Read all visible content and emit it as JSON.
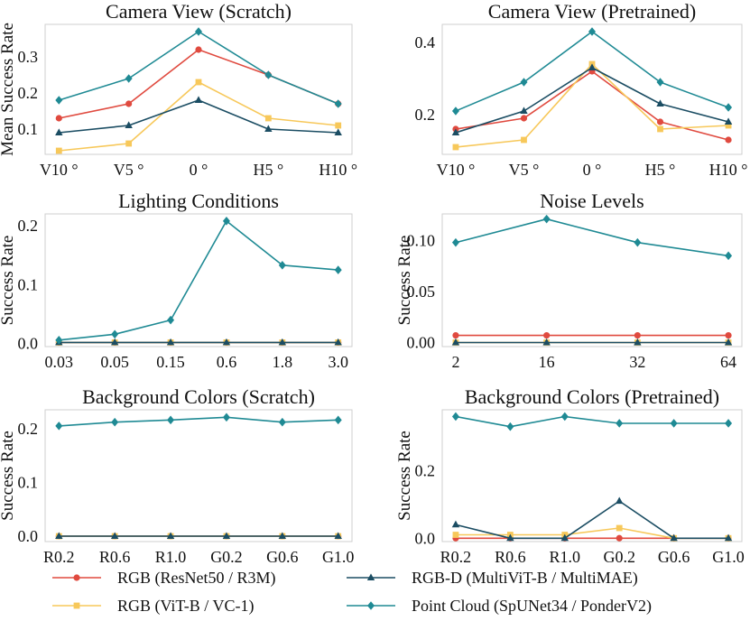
{
  "series_styles": [
    {
      "name": "RGB (ResNet50 / R3M)",
      "color": "#e04a3f",
      "marker": "circle"
    },
    {
      "name": "RGB (ViT-B / VC-1)",
      "color": "#f7c85a",
      "marker": "square"
    },
    {
      "name": "RGB-D (MultiViT-B / MultiMAE)",
      "color": "#1b4d63",
      "marker": "triangle"
    },
    {
      "name": "Point Cloud (SpUNet34 / PonderV2)",
      "color": "#1f8a94",
      "marker": "diamond"
    }
  ],
  "chart_data": [
    {
      "type": "line",
      "title": "Camera View (Scratch)",
      "ylabel": "Mean Success Rate",
      "categories": [
        "V10$^\\circ$",
        "V5$^\\circ$",
        "0$^\\circ$",
        "H5$^\\circ$",
        "H10$^\\circ$"
      ],
      "category_labels": [
        "V10 °",
        "V5 °",
        "0 °",
        "H5 °",
        "H10 °"
      ],
      "ylim": [
        0.03,
        0.39
      ],
      "yticks": [
        0.1,
        0.2,
        0.3
      ],
      "ytick_labels": [
        "0.1",
        "0.2",
        "0.3"
      ],
      "series": [
        {
          "name": "RGB (ResNet50 / R3M)",
          "values": [
            0.13,
            0.17,
            0.32,
            0.25,
            0.17
          ]
        },
        {
          "name": "RGB (ViT-B / VC-1)",
          "values": [
            0.04,
            0.06,
            0.23,
            0.13,
            0.11
          ]
        },
        {
          "name": "RGB-D (MultiViT-B / MultiMAE)",
          "values": [
            0.09,
            0.11,
            0.18,
            0.1,
            0.09
          ]
        },
        {
          "name": "Point Cloud (SpUNet34 / PonderV2)",
          "values": [
            0.18,
            0.24,
            0.37,
            0.25,
            0.17
          ]
        }
      ]
    },
    {
      "type": "line",
      "title": "Camera View (Pretrained)",
      "ylabel": "",
      "categories": [
        "V10$^\\circ$",
        "V5$^\\circ$",
        "0$^\\circ$",
        "H5$^\\circ$",
        "H10$^\\circ$"
      ],
      "category_labels": [
        "V10 °",
        "V5 °",
        "0 °",
        "H5 °",
        "H10 °"
      ],
      "ylim": [
        0.09,
        0.45
      ],
      "yticks": [
        0.2,
        0.4
      ],
      "ytick_labels": [
        "0.2",
        "0.4"
      ],
      "series": [
        {
          "name": "RGB (ResNet50 / R3M)",
          "values": [
            0.16,
            0.19,
            0.32,
            0.18,
            0.13
          ]
        },
        {
          "name": "RGB (ViT-B / VC-1)",
          "values": [
            0.11,
            0.13,
            0.34,
            0.16,
            0.17
          ]
        },
        {
          "name": "RGB-D (MultiViT-B / MultiMAE)",
          "values": [
            0.15,
            0.21,
            0.33,
            0.23,
            0.18
          ]
        },
        {
          "name": "Point Cloud (SpUNet34 / PonderV2)",
          "values": [
            0.21,
            0.29,
            0.43,
            0.29,
            0.22
          ]
        }
      ]
    },
    {
      "type": "line",
      "title": "Lighting Conditions",
      "ylabel": "Success Rate",
      "categories": [
        "0.03",
        "0.05",
        "0.15",
        "0.6",
        "1.8",
        "3.0"
      ],
      "category_labels": [
        "0.03",
        "0.05",
        "0.15",
        "0.6",
        "1.8",
        "3.0"
      ],
      "ylim": [
        -0.005,
        0.22
      ],
      "yticks": [
        0.0,
        0.1,
        0.2
      ],
      "ytick_labels": [
        "0.0",
        "0.1",
        "0.2"
      ],
      "series": [
        {
          "name": "RGB (ResNet50 / R3M)",
          "values": [
            0.002,
            0.002,
            0.002,
            0.002,
            0.002,
            0.002
          ]
        },
        {
          "name": "RGB (ViT-B / VC-1)",
          "values": [
            0.002,
            0.002,
            0.002,
            0.002,
            0.002,
            0.002
          ]
        },
        {
          "name": "RGB-D (MultiViT-B / MultiMAE)",
          "values": [
            0.002,
            0.002,
            0.002,
            0.002,
            0.002,
            0.002
          ]
        },
        {
          "name": "Point Cloud (SpUNet34 / PonderV2)",
          "values": [
            0.006,
            0.016,
            0.04,
            0.208,
            0.133,
            0.125
          ]
        }
      ]
    },
    {
      "type": "line",
      "title": "Noise Levels",
      "ylabel": "Success Rate",
      "categories": [
        "2",
        "16",
        "32",
        "64"
      ],
      "category_labels": [
        "2",
        "16",
        "32",
        "64"
      ],
      "ylim": [
        -0.004,
        0.126
      ],
      "yticks": [
        0.0,
        0.05,
        0.1
      ],
      "ytick_labels": [
        "0.00",
        "0.05",
        "0.10"
      ],
      "series": [
        {
          "name": "RGB (ResNet50 / R3M)",
          "values": [
            0.007,
            0.007,
            0.007,
            0.007
          ]
        },
        {
          "name": "RGB (ViT-B / VC-1)",
          "values": [
            0.0,
            0.0,
            0.0,
            0.0
          ]
        },
        {
          "name": "RGB-D (MultiViT-B / MultiMAE)",
          "values": [
            0.0,
            0.0,
            0.0,
            0.0
          ]
        },
        {
          "name": "Point Cloud (SpUNet34 / PonderV2)",
          "values": [
            0.098,
            0.121,
            0.098,
            0.085
          ]
        }
      ]
    },
    {
      "type": "line",
      "title": "Background Colors (Scratch)",
      "ylabel": "Success Rate",
      "categories": [
        "R0.2",
        "R0.6",
        "R1.0",
        "G0.2",
        "G0.6",
        "G1.0"
      ],
      "category_labels": [
        "R0.2",
        "R0.6",
        "R1.0",
        "G0.2",
        "G0.6",
        "G1.0"
      ],
      "ylim": [
        -0.01,
        0.235
      ],
      "yticks": [
        0.0,
        0.1,
        0.2
      ],
      "ytick_labels": [
        "0.0",
        "0.1",
        "0.2"
      ],
      "series": [
        {
          "name": "RGB (ResNet50 / R3M)",
          "values": [
            0.0,
            0.0,
            0.0,
            0.0,
            0.0,
            0.0
          ]
        },
        {
          "name": "RGB (ViT-B / VC-1)",
          "values": [
            0.0,
            0.0,
            0.0,
            0.0,
            0.0,
            0.0
          ]
        },
        {
          "name": "RGB-D (MultiViT-B / MultiMAE)",
          "values": [
            0.0,
            0.0,
            0.0,
            0.0,
            0.0,
            0.0
          ]
        },
        {
          "name": "Point Cloud (SpUNet34 / PonderV2)",
          "values": [
            0.205,
            0.212,
            0.216,
            0.221,
            0.212,
            0.216
          ]
        }
      ]
    },
    {
      "type": "line",
      "title": "Background Colors (Pretrained)",
      "ylabel": "Success Rate",
      "categories": [
        "R0.2",
        "R0.6",
        "R1.0",
        "G0.2",
        "G0.6",
        "G1.0"
      ],
      "category_labels": [
        "R0.2",
        "R0.6",
        "R1.0",
        "G0.2",
        "G0.6",
        "G1.0"
      ],
      "ylim": [
        -0.01,
        0.38
      ],
      "yticks": [
        0.0,
        0.2
      ],
      "ytick_labels": [
        "0.0",
        "0.2"
      ],
      "series": [
        {
          "name": "RGB (ResNet50 / R3M)",
          "values": [
            0.0,
            0.0,
            0.0,
            0.0,
            0.0,
            0.0
          ]
        },
        {
          "name": "RGB (ViT-B / VC-1)",
          "values": [
            0.01,
            0.01,
            0.01,
            0.03,
            0.0,
            0.0
          ]
        },
        {
          "name": "RGB-D (MultiViT-B / MultiMAE)",
          "values": [
            0.04,
            0.0,
            0.0,
            0.11,
            0.0,
            0.0
          ]
        },
        {
          "name": "Point Cloud (SpUNet34 / PonderV2)",
          "values": [
            0.36,
            0.33,
            0.36,
            0.34,
            0.34,
            0.34
          ]
        }
      ]
    }
  ]
}
